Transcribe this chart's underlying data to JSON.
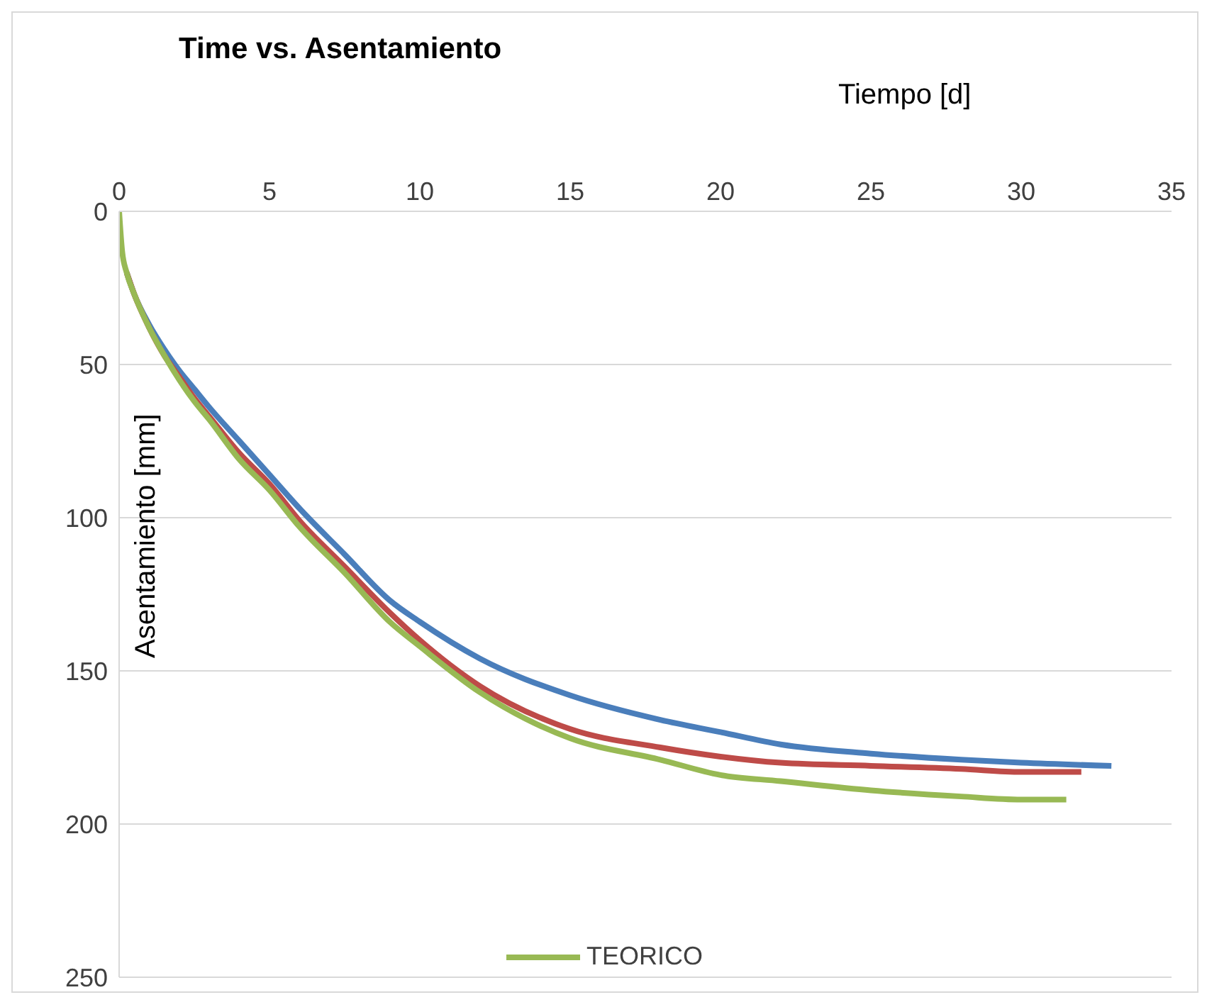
{
  "chart_data": {
    "type": "line",
    "title": "Time vs. Asentamiento",
    "xlabel": "Tiempo [d]",
    "ylabel": "Asentamiento [mm]",
    "xlim": [
      0,
      35
    ],
    "xticks": [
      0,
      5,
      10,
      15,
      20,
      25,
      30,
      35
    ],
    "ylim": [
      250,
      0
    ],
    "yticks": [
      0,
      50,
      100,
      150,
      200,
      250
    ],
    "grid": "y",
    "legend": "bottom",
    "marker": "none",
    "line_style": "solid",
    "series": [
      {
        "color": "#4a7ebb",
        "x": [
          0.25,
          0.5,
          1,
          1.5,
          2,
          2.5,
          3,
          4,
          5,
          6,
          7.5,
          9,
          10,
          12,
          15,
          18,
          20,
          22,
          25,
          28,
          30,
          33
        ],
        "values": [
          20,
          27,
          37,
          45,
          52,
          58,
          64,
          75,
          86,
          97,
          112,
          127,
          134,
          146,
          158,
          166,
          170,
          174,
          177,
          179,
          180,
          181
        ]
      },
      {
        "color": "#be4b48",
        "x": [
          0.25,
          0.5,
          1,
          1.5,
          2,
          2.5,
          3,
          4,
          5,
          6,
          7.5,
          9,
          10,
          12,
          15,
          18,
          20,
          22,
          25,
          28,
          30,
          32
        ],
        "values": [
          20,
          27,
          38,
          47,
          54,
          61,
          67,
          79,
          89,
          101,
          116,
          131,
          140,
          155,
          169,
          175,
          178,
          180,
          181,
          182,
          183,
          183
        ]
      },
      {
        "name": "TEORICO",
        "color": "#98b954",
        "x": [
          0,
          0.1,
          0.25,
          0.5,
          1,
          1.5,
          2,
          2.5,
          3,
          4,
          5,
          6,
          7.5,
          9,
          10,
          12,
          15,
          18,
          20,
          22,
          25,
          28,
          30,
          31.5
        ],
        "values": [
          0,
          13,
          20,
          27,
          38,
          47,
          55,
          62,
          68,
          81,
          91,
          103,
          118,
          134,
          142,
          157,
          172,
          179,
          184,
          186,
          189,
          191,
          192,
          192
        ]
      }
    ]
  }
}
